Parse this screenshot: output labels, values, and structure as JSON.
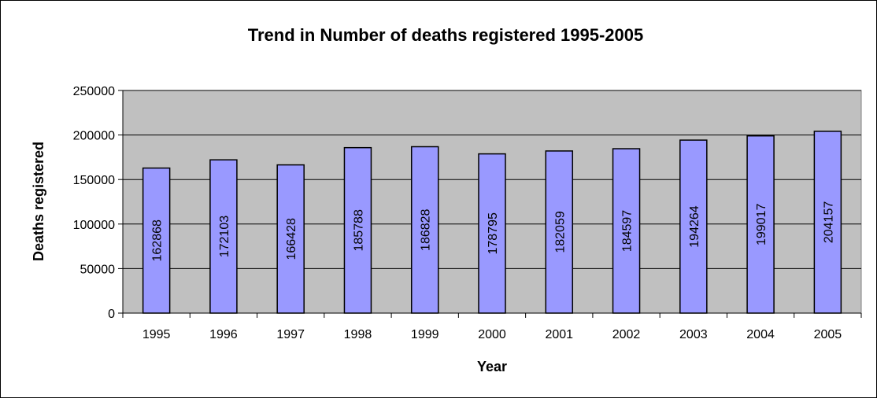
{
  "chart_data": {
    "type": "bar",
    "title": "Trend in Number of deaths registered 1995-2005",
    "xlabel": "Year",
    "ylabel": "Deaths registered",
    "categories": [
      "1995",
      "1996",
      "1997",
      "1998",
      "1999",
      "2000",
      "2001",
      "2002",
      "2003",
      "2004",
      "2005"
    ],
    "values": [
      162868,
      172103,
      166428,
      185788,
      186828,
      178795,
      182059,
      184597,
      194264,
      199017,
      204157
    ],
    "ylim": [
      0,
      250000
    ],
    "yticks": [
      0,
      50000,
      100000,
      150000,
      200000,
      250000
    ],
    "grid": true,
    "data_labels": "inside-bar-rotated",
    "colors": {
      "bar_fill": "#9999ff",
      "bar_stroke": "#000000",
      "plot_background": "#c0c0c0",
      "gridline": "#000000"
    }
  }
}
